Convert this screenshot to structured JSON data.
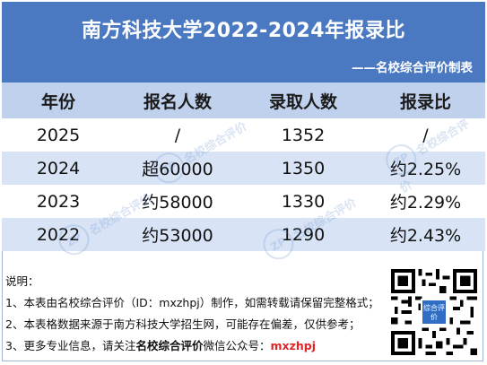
{
  "header": {
    "title": "南方科技大学2022-2024年报录比",
    "subtitle": "——名校综合评价制表"
  },
  "table": {
    "headers": [
      "年份",
      "报名人数",
      "录取人数",
      "报录比"
    ],
    "rows": [
      [
        "2025",
        "/",
        "1352",
        "/"
      ],
      [
        "2024",
        "超60000",
        "1350",
        "约2.25%"
      ],
      [
        "2023",
        "约58000",
        "1330",
        "约2.29%"
      ],
      [
        "2022",
        "约53000",
        "1290",
        "约2.43%"
      ]
    ]
  },
  "watermark": {
    "logo": "ZP",
    "text": "名校综合评价"
  },
  "notes": {
    "heading": "说明：",
    "line1": "1、本表由名校综合评价（ID：mxzhpj）制作，如需转载请保留完整格式；",
    "line2": "2、本表格数据来源于南方科技大学招生网，可能存在偏差，仅供参考；",
    "line3_prefix": "3、更多专业信息，请关注",
    "line3_bold": "名校综合评价",
    "line3_mid": "微信公众号：",
    "line3_id": "mxzhpj"
  },
  "qr": {
    "center_label": "综合评价"
  },
  "colors": {
    "header_bg": "#4a79c2",
    "table_header_bg": "#bfd1ec",
    "stripe_bg": "#d8e4f5",
    "accent_red": "#e02424"
  }
}
